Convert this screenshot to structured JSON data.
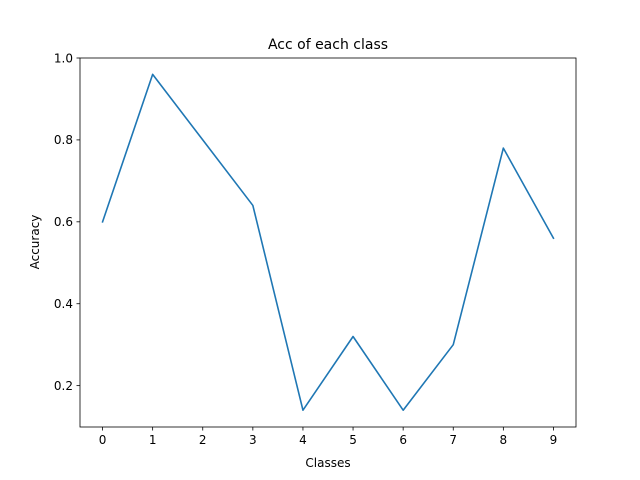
{
  "chart_data": {
    "type": "line",
    "title": "Acc of each class",
    "xlabel": "Classes",
    "ylabel": "Accuracy",
    "x": [
      0,
      1,
      2,
      3,
      4,
      5,
      6,
      7,
      8,
      9
    ],
    "series": [
      {
        "values": [
          0.6,
          0.96,
          0.8,
          0.64,
          0.14,
          0.32,
          0.14,
          0.3,
          0.78,
          0.56
        ],
        "color": "#1f77b4"
      }
    ],
    "xlim": [
      -0.45,
      9.45
    ],
    "ylim": [
      0.099,
      1.0
    ],
    "xticks": [
      "0",
      "1",
      "2",
      "3",
      "4",
      "5",
      "6",
      "7",
      "8",
      "9"
    ],
    "yticks": [
      0.2,
      0.4,
      0.6,
      0.8,
      1.0
    ],
    "ytick_labels": [
      "0.2",
      "0.4",
      "0.6",
      "0.8",
      "1.0"
    ],
    "grid": false,
    "legend": "none"
  }
}
